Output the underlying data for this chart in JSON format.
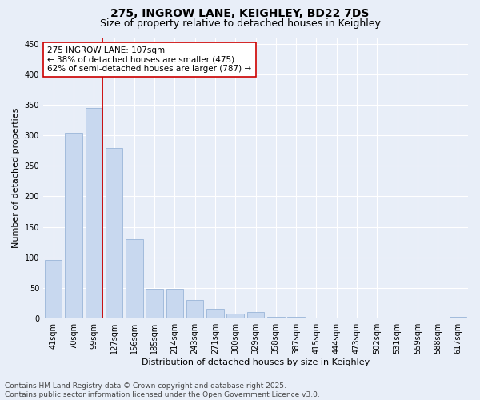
{
  "title_line1": "275, INGROW LANE, KEIGHLEY, BD22 7DS",
  "title_line2": "Size of property relative to detached houses in Keighley",
  "xlabel": "Distribution of detached houses by size in Keighley",
  "ylabel": "Number of detached properties",
  "categories": [
    "41sqm",
    "70sqm",
    "99sqm",
    "127sqm",
    "156sqm",
    "185sqm",
    "214sqm",
    "243sqm",
    "271sqm",
    "300sqm",
    "329sqm",
    "358sqm",
    "387sqm",
    "415sqm",
    "444sqm",
    "473sqm",
    "502sqm",
    "531sqm",
    "559sqm",
    "588sqm",
    "617sqm"
  ],
  "values": [
    95,
    305,
    345,
    280,
    130,
    48,
    48,
    30,
    15,
    8,
    10,
    2,
    2,
    0,
    0,
    0,
    0,
    0,
    0,
    0,
    2
  ],
  "bar_color": "#c8d8ef",
  "bar_edge_color": "#9ab5d8",
  "vline_x_index": 2,
  "vline_color": "#cc0000",
  "annotation_text": "275 INGROW LANE: 107sqm\n← 38% of detached houses are smaller (475)\n62% of semi-detached houses are larger (787) →",
  "annotation_box_facecolor": "#ffffff",
  "annotation_box_edgecolor": "#cc0000",
  "ylim": [
    0,
    460
  ],
  "yticks": [
    0,
    50,
    100,
    150,
    200,
    250,
    300,
    350,
    400,
    450
  ],
  "bg_color": "#e8eef8",
  "plot_bg_color": "#e8eef8",
  "footer_text": "Contains HM Land Registry data © Crown copyright and database right 2025.\nContains public sector information licensed under the Open Government Licence v3.0.",
  "title_fontsize": 10,
  "subtitle_fontsize": 9,
  "axis_label_fontsize": 8,
  "tick_fontsize": 7,
  "annotation_fontsize": 7.5,
  "footer_fontsize": 6.5,
  "grid_color": "#ffffff",
  "grid_linewidth": 0.8
}
